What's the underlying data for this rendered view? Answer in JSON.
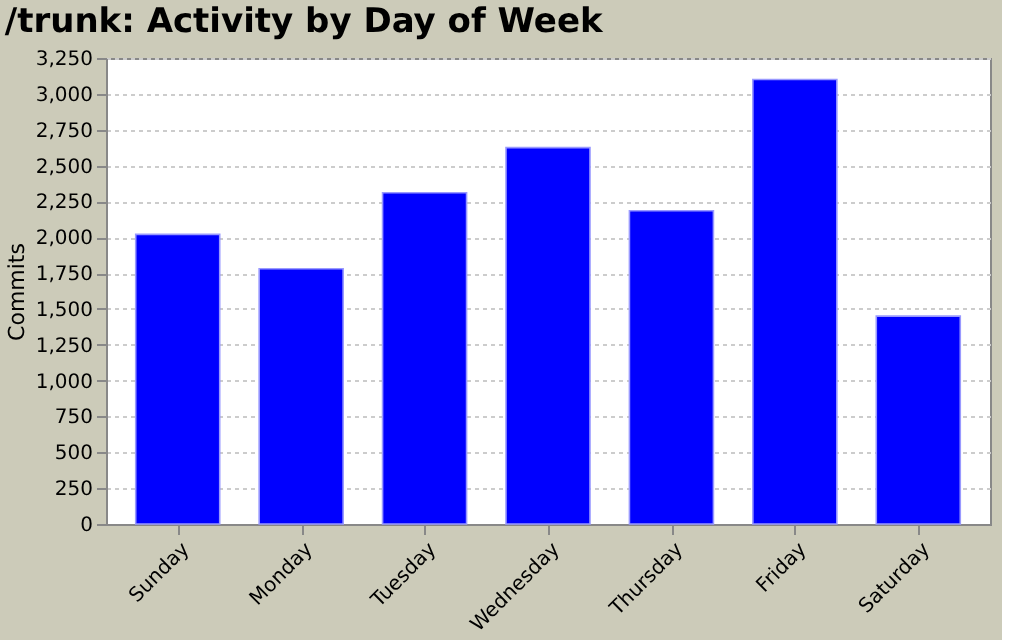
{
  "chart_data": {
    "type": "bar",
    "title": "/trunk: Activity by Day of Week",
    "ylabel": "Commits",
    "categories": [
      "Sunday",
      "Monday",
      "Tuesday",
      "Wednesday",
      "Thursday",
      "Friday",
      "Saturday"
    ],
    "values": [
      2020,
      1780,
      2310,
      2625,
      2185,
      3100,
      1450
    ],
    "color": "#0000ff",
    "ylim": [
      0,
      3250
    ],
    "yticks": [
      0,
      {
        "value": 250,
        "label": "250"
      },
      {
        "value": 500,
        "label": "500"
      },
      {
        "value": 750,
        "label": "750"
      },
      {
        "value": 1000,
        "label": "1,000"
      },
      {
        "value": 1250,
        "label": "1,250"
      },
      {
        "value": 1500,
        "label": "1,500"
      },
      {
        "value": 1750,
        "label": "1,750"
      },
      {
        "value": 2000,
        "label": "2,000"
      },
      {
        "value": 2250,
        "label": "2,250"
      },
      {
        "value": 2500,
        "label": "2,500"
      },
      {
        "value": 2750,
        "label": "2,750"
      },
      {
        "value": 3000,
        "label": "3,000"
      },
      {
        "value": 3250,
        "label": "3,250"
      }
    ],
    "grid": "y"
  }
}
